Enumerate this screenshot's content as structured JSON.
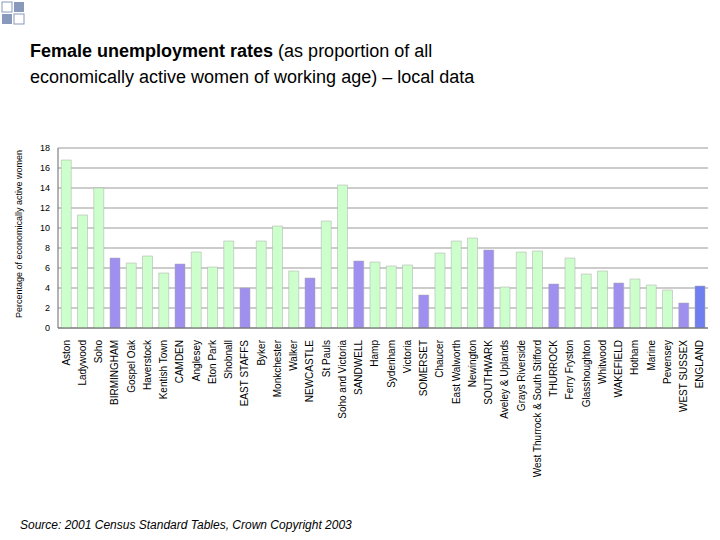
{
  "chart_data": {
    "type": "bar",
    "title": "Female unemployment rates",
    "subtitle": "(as proportion of all economically active women of working age) – local data",
    "y_label": "Percentage of economically active women",
    "annotations": [
      "Source: 2001 Census Standard Tables, Crown Copyright 2003"
    ],
    "categories": [
      "Aston",
      "Ladywood",
      "Soho",
      "BIRMINGHAM",
      "Gospel Oak",
      "Haverstock",
      "Kentish Town",
      "CAMDEN",
      "Anglesey",
      "Eton Park",
      "Shobnall",
      "EAST STAFFS",
      "Byker",
      "Monkchester",
      "Walker",
      "NEWCASTLE",
      "St Pauls",
      "Soho and Victoria",
      "SANDWELL",
      "Hamp",
      "Sydenham",
      "Victoria",
      "SOMERSET",
      "Chaucer",
      "East Walworth",
      "Newington",
      "SOUTHWARK",
      "Aveley & Uplands",
      "Grays Riverside",
      "West Thurrock & South Stifford",
      "THURROCK",
      "Ferry Fryston",
      "Glasshoughton",
      "Whitwood",
      "WAKEFIELD",
      "Hotham",
      "Marine",
      "Pevensey",
      "WEST SUSSEX",
      "ENGLAND"
    ],
    "values": [
      16.8,
      11.3,
      14.0,
      7.0,
      6.5,
      7.2,
      5.5,
      6.4,
      7.6,
      6.1,
      8.7,
      4.0,
      8.7,
      10.2,
      5.7,
      5.0,
      10.7,
      14.3,
      6.7,
      6.6,
      6.2,
      6.3,
      3.3,
      7.5,
      8.7,
      9.0,
      7.8,
      4.1,
      7.6,
      7.7,
      4.4,
      7.0,
      5.4,
      5.7,
      4.5,
      4.9,
      4.3,
      3.8,
      2.5,
      4.2
    ],
    "colors": [
      "#ccffcc",
      "#ccffcc",
      "#ccffcc",
      "#9f8fef",
      "#ccffcc",
      "#ccffcc",
      "#ccffcc",
      "#9f8fef",
      "#ccffcc",
      "#ccffcc",
      "#ccffcc",
      "#9f8fef",
      "#ccffcc",
      "#ccffcc",
      "#ccffcc",
      "#9f8fef",
      "#ccffcc",
      "#ccffcc",
      "#9f8fef",
      "#ccffcc",
      "#ccffcc",
      "#ccffcc",
      "#9f8fef",
      "#ccffcc",
      "#ccffcc",
      "#ccffcc",
      "#9f8fef",
      "#ccffcc",
      "#ccffcc",
      "#ccffcc",
      "#9f8fef",
      "#ccffcc",
      "#ccffcc",
      "#ccffcc",
      "#9f8fef",
      "#ccffcc",
      "#ccffcc",
      "#ccffcc",
      "#9f8fef",
      "#6f7fef"
    ],
    "ylim": [
      0,
      18
    ],
    "yticks": [
      0,
      2,
      4,
      6,
      8,
      10,
      12,
      14,
      16,
      18
    ],
    "grid": true
  }
}
